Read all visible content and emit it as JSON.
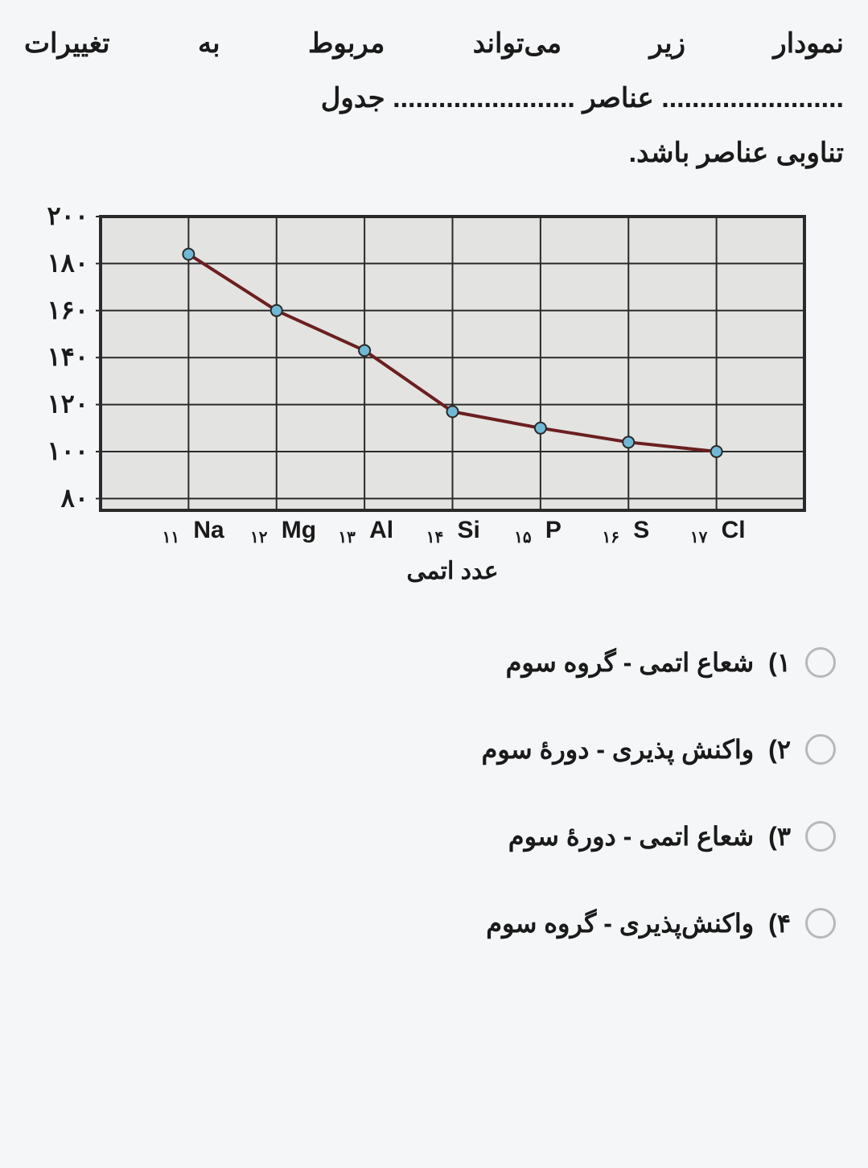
{
  "question": {
    "line1_words": [
      "نمودار",
      "زیر",
      "می‌تواند",
      "مربوط",
      "به",
      "تغییرات"
    ],
    "line2": "........................ عناصر ........................ جدول",
    "line3": "تناوبی عناصر باشد."
  },
  "chart": {
    "type": "line",
    "background_color": "#e3e3e1",
    "grid_color": "#2a2a2a",
    "line_color": "#6b1f1f",
    "line_width": 4,
    "marker_fill": "#6fb9d6",
    "marker_stroke": "#2a2a2a",
    "marker_radius": 7,
    "xlabel": "عدد اتمی",
    "xlabel_fontsize": 30,
    "y_ticks": [
      80,
      100,
      120,
      140,
      160,
      180,
      200
    ],
    "y_tick_labels": [
      "۸۰",
      "۱۰۰",
      "۱۲۰",
      "۱۴۰",
      "۱۶۰",
      "۱۸۰",
      "۲۰۰"
    ],
    "y_tick_fontsize": 32,
    "ylim": [
      75,
      200
    ],
    "x_categories": [
      {
        "sub": "۱۱",
        "sym": "Na"
      },
      {
        "sub": "۱۲",
        "sym": "Mg"
      },
      {
        "sub": "۱۳",
        "sym": "Al"
      },
      {
        "sub": "۱۴",
        "sym": "Si"
      },
      {
        "sub": "۱۵",
        "sym": "P"
      },
      {
        "sub": "۱۶",
        "sym": "S"
      },
      {
        "sub": "۱۷",
        "sym": "Cl"
      }
    ],
    "x_label_fontsize": 30,
    "x_values": [
      0,
      1,
      2,
      3,
      4,
      5,
      6
    ],
    "y_values": [
      184,
      160,
      143,
      117,
      110,
      104,
      100
    ]
  },
  "options": [
    {
      "num": "۱)",
      "text": "شعاع اتمی - گروه سوم"
    },
    {
      "num": "۲)",
      "text": "واکنش پذیری - دورهٔ سوم"
    },
    {
      "num": "۳)",
      "text": "شعاع اتمی - دورهٔ سوم"
    },
    {
      "num": "۴)",
      "text": "واکنش‌پذیری - گروه سوم"
    }
  ]
}
